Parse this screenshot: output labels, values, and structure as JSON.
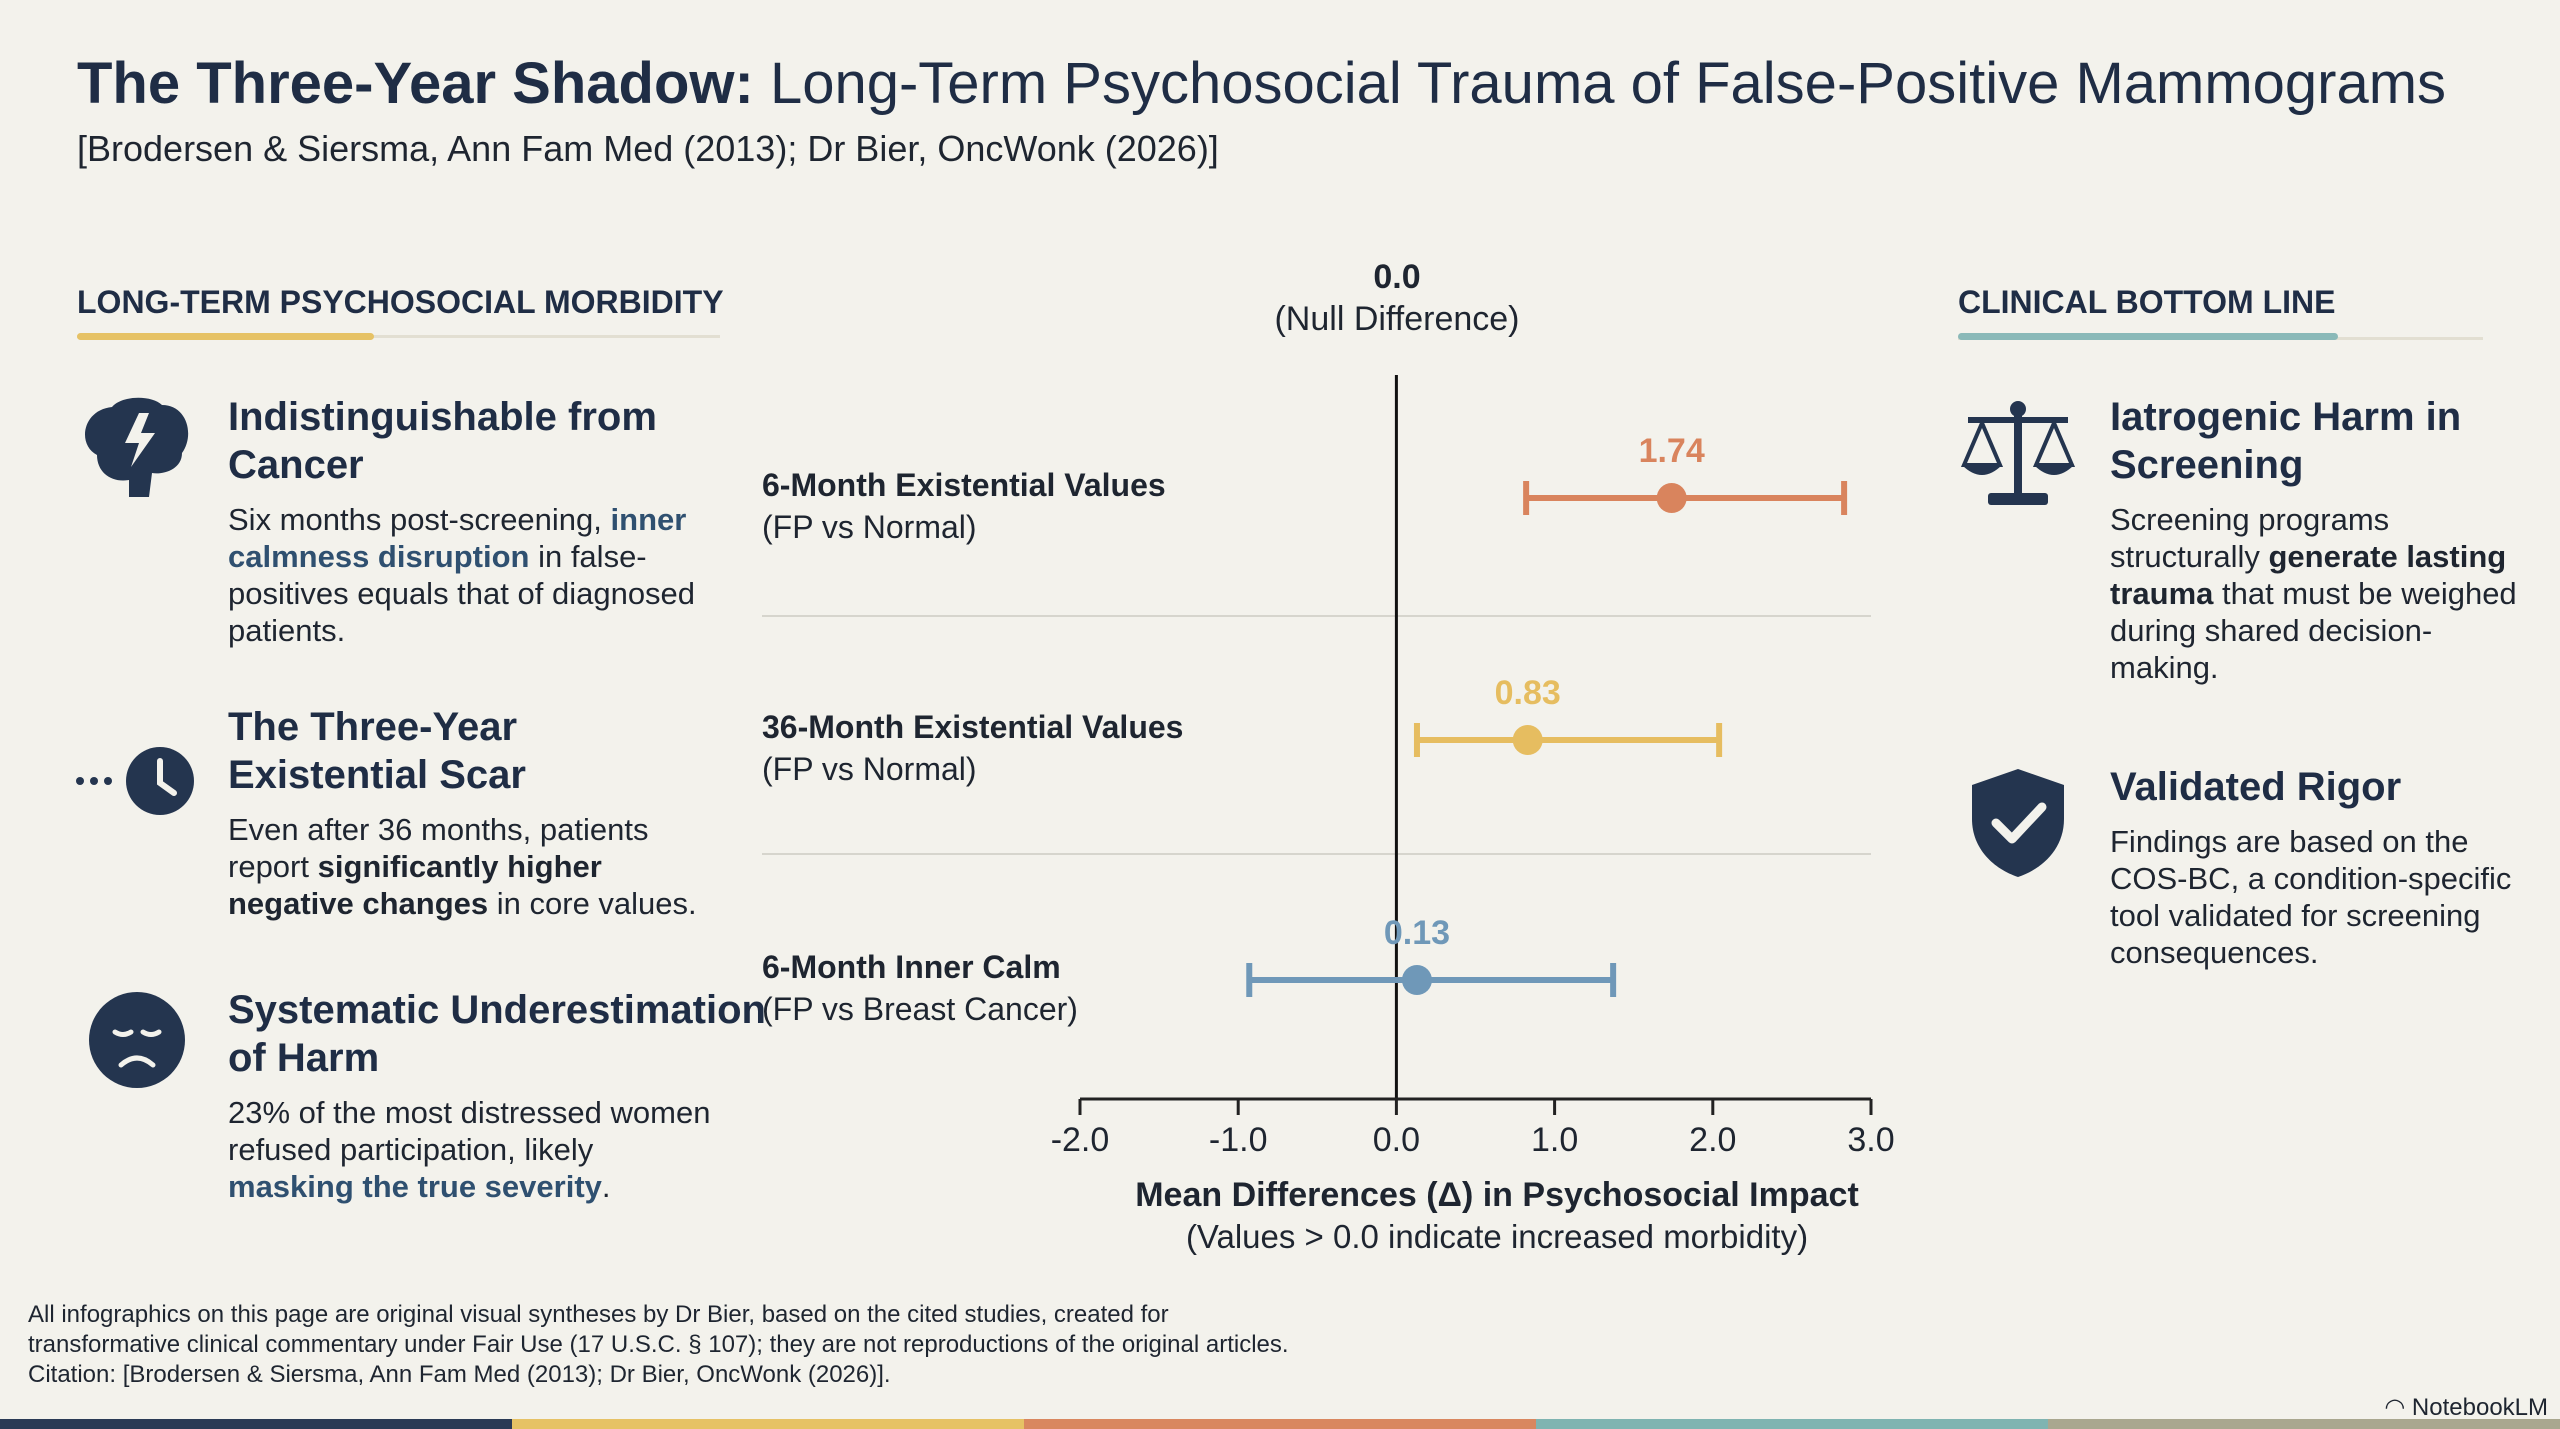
{
  "header": {
    "title_bold": "The Three-Year Shadow:",
    "title_rest": " Long-Term Psychosocial Trauma of False-Positive Mammograms",
    "subtitle": "[Brodersen & Siersma, Ann Fam Med (2013); Dr Bier, OncWonk (2026)]"
  },
  "left": {
    "heading": "LONG-TERM PSYCHOSOCIAL MORBIDITY",
    "items": [
      {
        "icon": "brain-lightning-icon",
        "title": "Indistinguishable from Cancer",
        "body": [
          "Six months post-screening, ",
          "inner calmness disruption",
          " in false-positives equals that of diagnosed patients."
        ]
      },
      {
        "icon": "clock-icon",
        "title": "The Three-Year Existential Scar",
        "body": [
          "Even after 36 months, patients report ",
          "significantly higher negative changes",
          " in core values."
        ]
      },
      {
        "icon": "sad-face-icon",
        "title": "Systematic Underestimation of Harm",
        "body": [
          "23% of the most distressed women refused participation, likely ",
          "masking the true severity",
          "."
        ]
      }
    ]
  },
  "right": {
    "heading": "CLINICAL BOTTOM LINE",
    "items": [
      {
        "icon": "scales-icon",
        "title": "Iatrogenic Harm in Screening",
        "body": [
          "Screening programs structurally ",
          "generate lasting trauma",
          " that must be weighed during shared decision-making."
        ]
      },
      {
        "icon": "shield-check-icon",
        "title": "Validated Rigor",
        "body": [
          "Findings are based on the COS-BC, a condition-specific tool validated for screening consequences.",
          "",
          ""
        ]
      }
    ]
  },
  "chart_data": {
    "type": "forest",
    "null_label": "0.0",
    "null_sublabel": "(Null Difference)",
    "xlabel": "Mean Differences (Δ) in Psychosocial Impact",
    "xsublabel": "(Values > 0.0 indicate increased morbidity)",
    "xlim": [
      -2.0,
      3.0
    ],
    "xticks": [
      "-2.0",
      "-1.0",
      "0.0",
      "1.0",
      "2.0",
      "3.0"
    ],
    "series": [
      {
        "name": "6-Month Existential Values",
        "sub": "(FP vs Normal)",
        "value": 1.74,
        "label": "1.74",
        "ci": [
          0.82,
          2.83
        ],
        "color": "#d9845d"
      },
      {
        "name": "36-Month Existential Values",
        "sub": "(FP vs Normal)",
        "value": 0.83,
        "label": "0.83",
        "ci": [
          0.13,
          2.04
        ],
        "color": "#e6bd60"
      },
      {
        "name": "6-Month Inner Calm",
        "sub": "(FP vs Breast Cancer)",
        "value": 0.13,
        "label": "0.13",
        "ci": [
          -0.93,
          1.37
        ],
        "color": "#6f98b8"
      }
    ]
  },
  "footer": {
    "lines": [
      "All infographics on this page are original visual syntheses by Dr Bier, based on the cited studies, created for",
      "transformative clinical commentary under Fair Use (17 U.S.C. § 107); they are not reproductions of the original articles.",
      "Citation: [Brodersen & Siersma, Ann Fam Med (2013); Dr Bier, OncWonk (2026)]."
    ],
    "brand": "NotebookLM"
  },
  "colors": {
    "navy": "#2a3a55",
    "yellow": "#e6c265",
    "orange": "#d9875f",
    "teal": "#7fb4b1",
    "olive": "#a9a78f"
  }
}
